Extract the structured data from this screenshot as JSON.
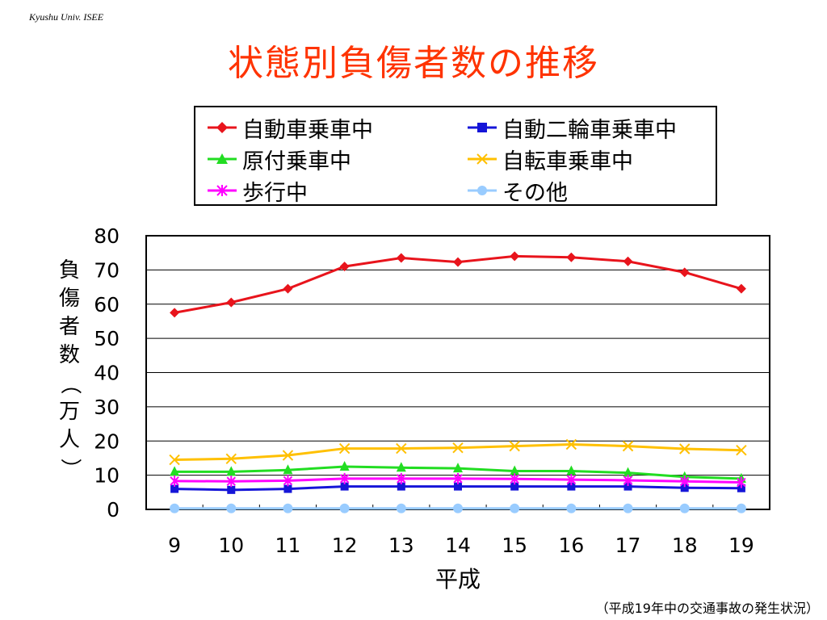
{
  "header": {
    "label": "Kyushu Univ. ISEE"
  },
  "footer": {
    "note": "（平成19年中の交通事故の発生状況）"
  },
  "colors": {
    "title": "#ff3300"
  },
  "chart_data": {
    "type": "line",
    "title": "状態別負傷者数の推移",
    "xlabel": "平成",
    "ylabel": "負傷者数（万人）",
    "categories": [
      "9",
      "10",
      "11",
      "12",
      "13",
      "14",
      "15",
      "16",
      "17",
      "18",
      "19"
    ],
    "ylim": [
      0,
      80
    ],
    "yticks": [
      "0",
      "10",
      "20",
      "30",
      "40",
      "50",
      "60",
      "70",
      "80"
    ],
    "grid": true,
    "legend_position": "top",
    "series": [
      {
        "name": "自動車乗車中",
        "color": "#e8141c",
        "marker": "diamond",
        "values": [
          57.5,
          60.5,
          64.5,
          71,
          73.5,
          72.3,
          74,
          73.7,
          72.5,
          69.3,
          64.5
        ]
      },
      {
        "name": "自動二輪車乗車中",
        "color": "#1515d8",
        "marker": "square",
        "values": [
          6,
          5.7,
          6,
          6.7,
          6.7,
          6.7,
          6.7,
          6.7,
          6.7,
          6.3,
          6.2
        ]
      },
      {
        "name": "原付乗車中",
        "color": "#22dd22",
        "marker": "triangle",
        "values": [
          11,
          11,
          11.5,
          12.5,
          12.2,
          12,
          11.2,
          11.2,
          10.7,
          9.5,
          9
        ]
      },
      {
        "name": "自転車乗車中",
        "color": "#ffc000",
        "marker": "x",
        "values": [
          14.5,
          14.8,
          15.8,
          17.8,
          17.8,
          18,
          18.5,
          19,
          18.5,
          17.7,
          17.3
        ]
      },
      {
        "name": "歩行中",
        "color": "#ff00ff",
        "marker": "asterisk",
        "values": [
          8.3,
          8.2,
          8.4,
          9,
          9,
          9,
          8.9,
          8.7,
          8.5,
          8.2,
          7.9
        ]
      },
      {
        "name": "その他",
        "color": "#99ccff",
        "marker": "circle",
        "values": [
          0.3,
          0.3,
          0.3,
          0.3,
          0.3,
          0.3,
          0.3,
          0.3,
          0.3,
          0.3,
          0.3
        ]
      }
    ]
  }
}
